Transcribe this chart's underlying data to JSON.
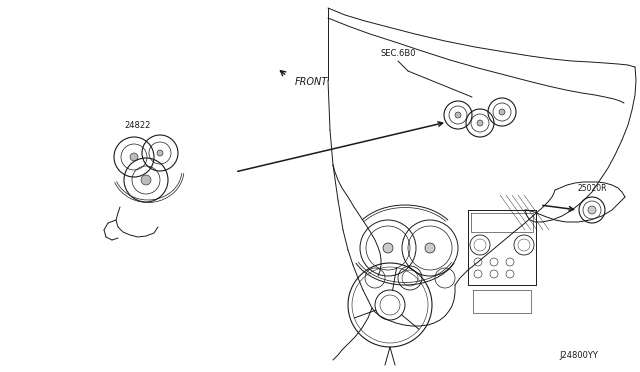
{
  "bg_color": "#ffffff",
  "line_color": "#1a1a1a",
  "fig_width": 6.4,
  "fig_height": 3.72,
  "dpi": 100,
  "label_24822": "24822",
  "label_25020R": "25020R",
  "label_sec6b0": "SEC.6B0",
  "label_front": "FRONT",
  "label_j24800yy": "J24800YY",
  "font_size_small": 6.5,
  "font_size_front": 7.5
}
